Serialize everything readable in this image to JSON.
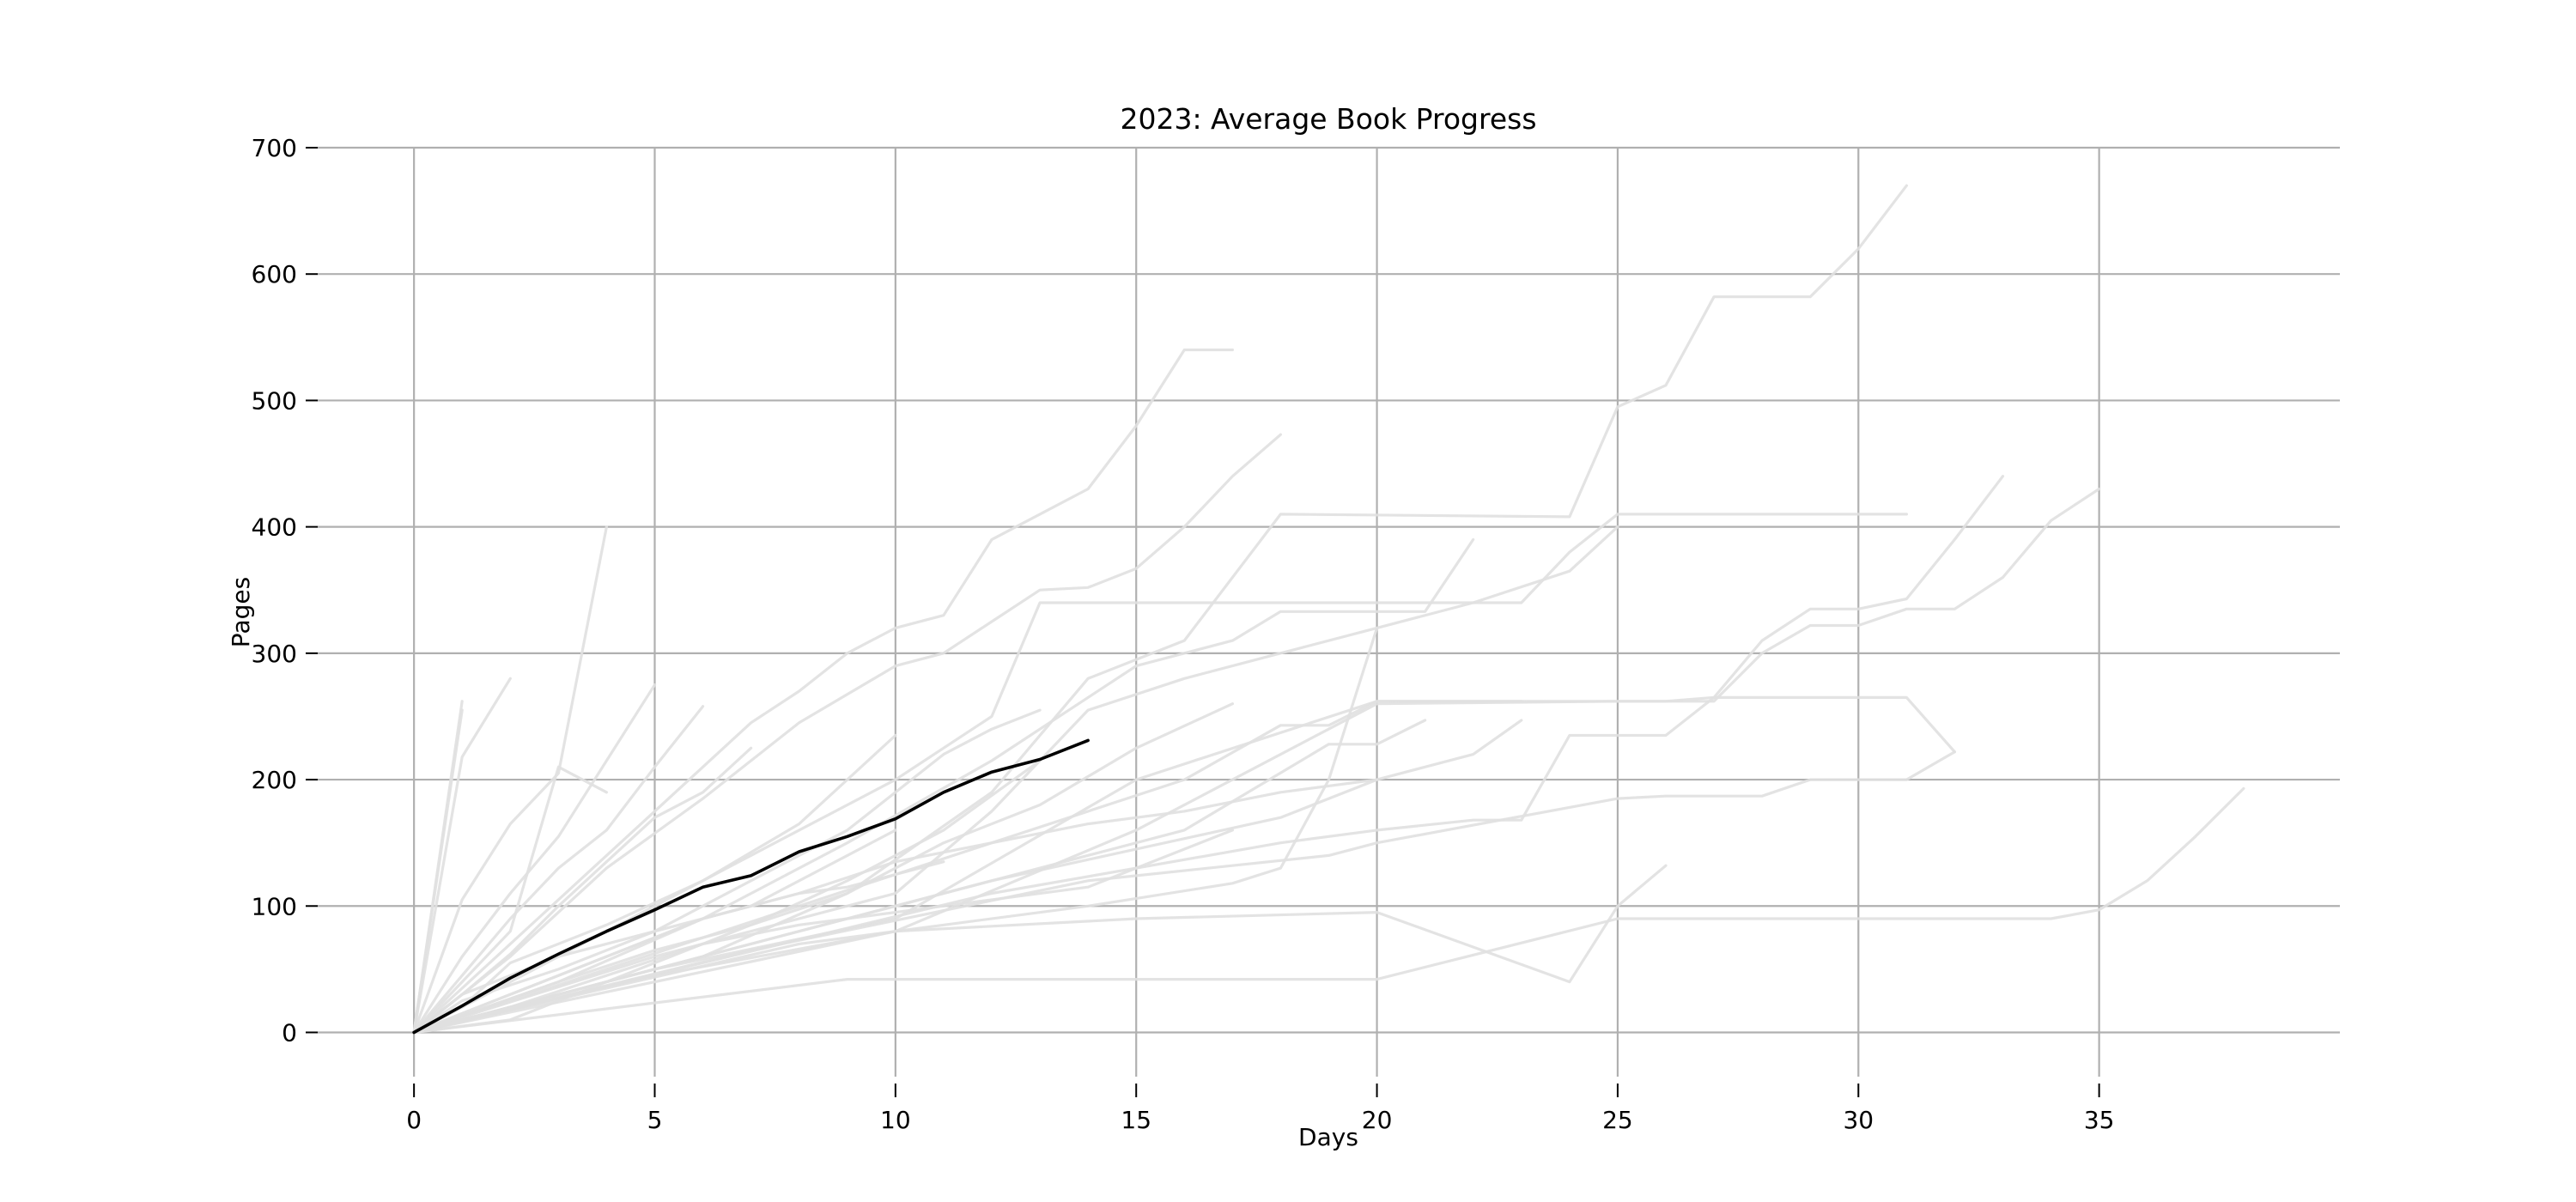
{
  "chart_data": {
    "type": "line",
    "title": "2023: Average Book Progress",
    "xlabel": "Days",
    "ylabel": "Pages",
    "xlim": [
      -2,
      40
    ],
    "ylim": [
      -35,
      700
    ],
    "x_ticks": [
      0,
      5,
      10,
      15,
      20,
      25,
      30,
      35
    ],
    "y_ticks": [
      0,
      100,
      200,
      300,
      400,
      500,
      600,
      700
    ],
    "grid": true,
    "colors": {
      "average": "#000000",
      "book": "#e0e0e0",
      "grid": "#b0b0b0"
    },
    "average_series": {
      "x": [
        0,
        1,
        2,
        3,
        4,
        5,
        6,
        7,
        8,
        9,
        10,
        11,
        12,
        13,
        14
      ],
      "y": [
        0,
        21,
        43,
        62,
        80,
        97,
        115,
        124,
        143,
        155,
        169,
        190,
        206,
        216,
        231
      ]
    },
    "book_series": [
      {
        "x": [
          0,
          1
        ],
        "y": [
          0,
          262
        ]
      },
      {
        "x": [
          0,
          1
        ],
        "y": [
          0,
          255
        ]
      },
      {
        "x": [
          0,
          1,
          2
        ],
        "y": [
          0,
          218,
          280
        ]
      },
      {
        "x": [
          0,
          1,
          2,
          3,
          4
        ],
        "y": [
          0,
          105,
          165,
          205,
          400
        ]
      },
      {
        "x": [
          0,
          1,
          2,
          3,
          4
        ],
        "y": [
          0,
          40,
          80,
          210,
          190
        ]
      },
      {
        "x": [
          0,
          1,
          2,
          3,
          4,
          5
        ],
        "y": [
          0,
          60,
          110,
          155,
          215,
          275
        ]
      },
      {
        "x": [
          0,
          1,
          2,
          3,
          4,
          5,
          6
        ],
        "y": [
          0,
          45,
          90,
          130,
          160,
          210,
          258
        ]
      },
      {
        "x": [
          0,
          1,
          2,
          3,
          4,
          5,
          6,
          7
        ],
        "y": [
          0,
          30,
          62,
          100,
          135,
          170,
          190,
          225
        ]
      },
      {
        "x": [
          0,
          1,
          2,
          3,
          4,
          5,
          6,
          7,
          8,
          9,
          10,
          11,
          12,
          13,
          14,
          15,
          16,
          17
        ],
        "y": [
          0,
          35,
          70,
          105,
          140,
          175,
          210,
          245,
          270,
          300,
          320,
          330,
          390,
          410,
          430,
          480,
          540,
          540
        ]
      },
      {
        "x": [
          0,
          2,
          4,
          6,
          8,
          10,
          11,
          12,
          13,
          14,
          15,
          16,
          17,
          18
        ],
        "y": [
          0,
          60,
          130,
          185,
          245,
          290,
          300,
          325,
          350,
          352,
          367,
          400,
          440,
          473
        ]
      },
      {
        "x": [
          0,
          2,
          4,
          6,
          8,
          10,
          12,
          13,
          14,
          15,
          16,
          17,
          18,
          19,
          20,
          21,
          22,
          23,
          24,
          25,
          26,
          27,
          28,
          29,
          30,
          31
        ],
        "y": [
          0,
          40,
          80,
          120,
          160,
          200,
          250,
          340,
          340,
          340,
          340,
          340,
          340,
          340,
          340,
          340,
          340,
          340,
          380,
          410,
          410,
          410,
          410,
          410,
          410,
          410
        ]
      },
      {
        "x": [
          0,
          3,
          6,
          9,
          12,
          14,
          16,
          18,
          24,
          25,
          26,
          27,
          28,
          29,
          30,
          31
        ],
        "y": [
          0,
          30,
          60,
          110,
          190,
          280,
          310,
          410,
          408,
          495,
          512,
          582,
          582,
          582,
          620,
          670
        ]
      },
      {
        "x": [
          0,
          3,
          6,
          9,
          12,
          15,
          17,
          18,
          19,
          20,
          21,
          22
        ],
        "y": [
          0,
          40,
          90,
          150,
          215,
          290,
          310,
          333,
          333,
          333,
          333,
          390
        ]
      },
      {
        "x": [
          0,
          5,
          10,
          12,
          14,
          16,
          18,
          20,
          22,
          24,
          25
        ],
        "y": [
          0,
          60,
          110,
          175,
          255,
          280,
          300,
          320,
          340,
          365,
          400
        ]
      },
      {
        "x": [
          0,
          5,
          10,
          15,
          20,
          25,
          26,
          27,
          28,
          29,
          30,
          31,
          32,
          33
        ],
        "y": [
          0,
          50,
          90,
          200,
          262,
          262,
          262,
          265,
          310,
          335,
          335,
          343,
          390,
          440
        ]
      },
      {
        "x": [
          0,
          5,
          10,
          15,
          20,
          25,
          27,
          28,
          29,
          30,
          31,
          32,
          33,
          34,
          35
        ],
        "y": [
          0,
          45,
          80,
          160,
          260,
          262,
          262,
          300,
          322,
          322,
          335,
          335,
          360,
          405,
          430
        ]
      },
      {
        "x": [
          0,
          4,
          8,
          12,
          16,
          18,
          19,
          20,
          21,
          22,
          23
        ],
        "y": [
          0,
          50,
          100,
          150,
          200,
          243,
          243,
          262,
          262,
          262,
          262
        ]
      },
      {
        "x": [
          0,
          4,
          8,
          12,
          16,
          19,
          20,
          21
        ],
        "y": [
          0,
          40,
          80,
          120,
          160,
          228,
          228,
          247
        ]
      },
      {
        "x": [
          0,
          6,
          12,
          18,
          20,
          22,
          23,
          24,
          25,
          26,
          27,
          28,
          29,
          30,
          31,
          32
        ],
        "y": [
          0,
          55,
          110,
          150,
          160,
          168,
          168,
          235,
          235,
          235,
          265,
          265,
          265,
          265,
          265,
          222
        ]
      },
      {
        "x": [
          0,
          6,
          12,
          18,
          20,
          21,
          22,
          23
        ],
        "y": [
          0,
          60,
          120,
          170,
          200,
          210,
          220,
          247
        ]
      },
      {
        "x": [
          0,
          7,
          14,
          19,
          20,
          25,
          26,
          27,
          28,
          29,
          30,
          31,
          32
        ],
        "y": [
          0,
          65,
          120,
          140,
          150,
          185,
          187,
          187,
          187,
          200,
          200,
          200,
          222
        ]
      },
      {
        "x": [
          0,
          8,
          14,
          17,
          18,
          19,
          20
        ],
        "y": [
          0,
          70,
          100,
          118,
          130,
          200,
          320
        ]
      },
      {
        "x": [
          0,
          10,
          15,
          20,
          24,
          25,
          26
        ],
        "y": [
          0,
          80,
          90,
          95,
          40,
          100,
          132
        ]
      },
      {
        "x": [
          0,
          9,
          10,
          20,
          25,
          30,
          34,
          35,
          36,
          37,
          38
        ],
        "y": [
          0,
          42,
          42,
          42,
          90,
          90,
          90,
          97,
          120,
          155,
          193
        ]
      },
      {
        "x": [
          0,
          2,
          4,
          6,
          8,
          10,
          12,
          14,
          15,
          16,
          17
        ],
        "y": [
          0,
          20,
          45,
          70,
          85,
          95,
          105,
          115,
          130,
          145,
          160
        ]
      },
      {
        "x": [
          0,
          1,
          2,
          3,
          4,
          5,
          6,
          7,
          8,
          9,
          10,
          11
        ],
        "y": [
          0,
          15,
          30,
          45,
          60,
          75,
          90,
          100,
          110,
          115,
          125,
          135
        ]
      },
      {
        "x": [
          0,
          2,
          4,
          6,
          8,
          10,
          12,
          14,
          16,
          18,
          20
        ],
        "y": [
          0,
          30,
          60,
          90,
          110,
          135,
          150,
          165,
          175,
          190,
          200
        ]
      },
      {
        "x": [
          0,
          3,
          5,
          7,
          9,
          11,
          13,
          15,
          17
        ],
        "y": [
          0,
          40,
          65,
          85,
          110,
          150,
          180,
          225,
          260
        ]
      },
      {
        "x": [
          0,
          1,
          3,
          5,
          7,
          9,
          10,
          11,
          12,
          13
        ],
        "y": [
          0,
          25,
          50,
          80,
          120,
          160,
          190,
          220,
          240,
          255
        ]
      },
      {
        "x": [
          0,
          2,
          3,
          5,
          7,
          9,
          11,
          13
        ],
        "y": [
          0,
          10,
          25,
          55,
          85,
          120,
          160,
          215
        ]
      },
      {
        "x": [
          0,
          1,
          2,
          4,
          6,
          8,
          10
        ],
        "y": [
          0,
          20,
          55,
          85,
          120,
          165,
          235
        ]
      },
      {
        "x": [
          0,
          1,
          3,
          5,
          7,
          9,
          10
        ],
        "y": [
          0,
          30,
          60,
          80,
          100,
          140,
          160
        ]
      }
    ]
  }
}
